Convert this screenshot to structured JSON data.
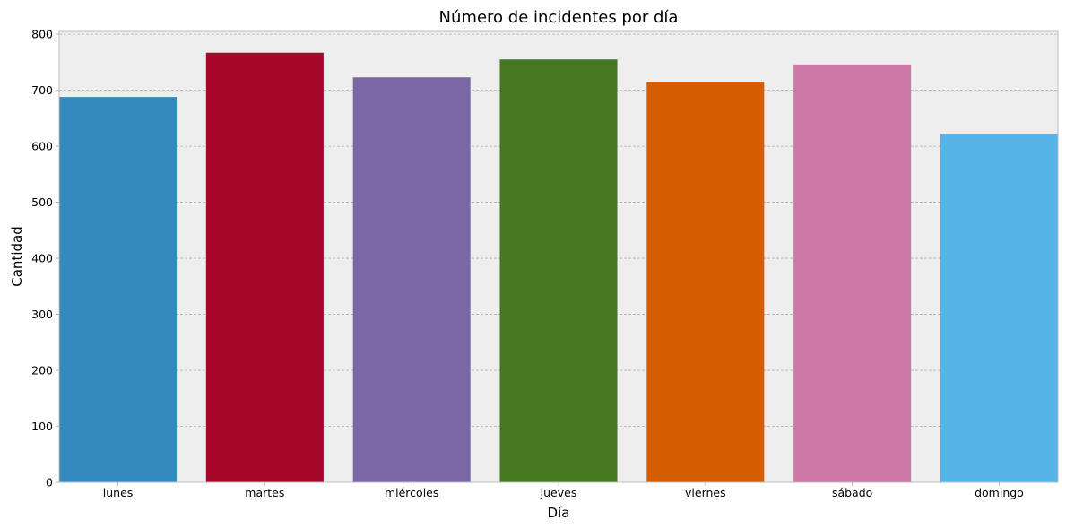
{
  "chart_data": {
    "type": "bar",
    "title": "Número de incidentes por día",
    "xlabel": "Día",
    "ylabel": "Cantidad",
    "categories": [
      "lunes",
      "martes",
      "miércoles",
      "jueves",
      "viernes",
      "sábado",
      "domingo"
    ],
    "values": [
      688,
      767,
      723,
      755,
      715,
      746,
      621
    ],
    "colors": [
      "#348ABD",
      "#A60628",
      "#7A68A6",
      "#467821",
      "#D55E00",
      "#CC79A7",
      "#56B4E9"
    ],
    "ylim": [
      0,
      805
    ],
    "yticks": [
      0,
      100,
      200,
      300,
      400,
      500,
      600,
      700,
      800
    ],
    "grid": true,
    "background": "#EEEEEE"
  }
}
